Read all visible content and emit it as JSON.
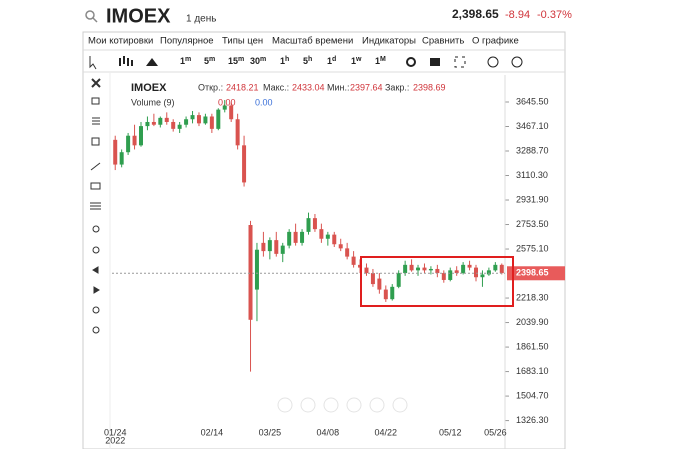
{
  "header": {
    "symbol": "IMOEX",
    "period": "1 день",
    "price": "2,398.65",
    "change": "-8.94",
    "change_pct": "-0.37%"
  },
  "menu": [
    "Мои котировки",
    "Популярное",
    "Типы цен",
    "Масштаб времени",
    "Индикаторы",
    "Сравнить",
    "О графике"
  ],
  "timeframes": [
    {
      "n": "1",
      "u": "m"
    },
    {
      "n": "5",
      "u": "m"
    },
    {
      "n": "15",
      "u": "m"
    },
    {
      "n": "30",
      "u": "m"
    },
    {
      "n": "1",
      "u": "h"
    },
    {
      "n": "5",
      "u": "h"
    },
    {
      "n": "1",
      "u": "d"
    },
    {
      "n": "1",
      "u": "w"
    },
    {
      "n": "1",
      "u": "M"
    }
  ],
  "legend": {
    "symbol": "IMOEX",
    "open_label": "Откр.:",
    "open": "2418.21",
    "high_label": "Макс.:",
    "high": "2433.04",
    "low_label": "Мин.:",
    "low": "2397.64",
    "close_label": "Закр.:",
    "close": "2398.69",
    "volume": "Volume (9)",
    "v1": "0.00",
    "v2": "0.00"
  },
  "chart_data": {
    "type": "candlestick",
    "up_color": "#2f9e4f",
    "down_color": "#d9534f",
    "categories": [
      "01/24",
      null,
      null,
      null,
      null,
      null,
      null,
      null,
      null,
      null,
      null,
      null,
      null,
      null,
      null,
      "02/14",
      null,
      null,
      null,
      null,
      null,
      null,
      null,
      null,
      "03/25",
      null,
      null,
      null,
      null,
      null,
      null,
      null,
      null,
      "04/08",
      null,
      null,
      null,
      null,
      null,
      null,
      null,
      null,
      "04/22",
      null,
      null,
      null,
      null,
      null,
      null,
      null,
      null,
      null,
      "05/12",
      null,
      null,
      null,
      null,
      null,
      null,
      "05/26",
      null
    ],
    "year": "2022",
    "open": [
      3370,
      3190,
      3280,
      3400,
      3330,
      3470,
      3500,
      3480,
      3530,
      3500,
      3450,
      3480,
      3520,
      3550,
      3490,
      3540,
      3450,
      3590,
      3620,
      3520,
      3330,
      2750,
      2280,
      2620,
      2560,
      2640,
      2540,
      2600,
      2700,
      2620,
      2700,
      2800,
      2720,
      2650,
      2680,
      2610,
      2580,
      2520,
      2460,
      2440,
      2400,
      2360,
      2280,
      2210,
      2300,
      2400,
      2460,
      2420,
      2440,
      2420,
      2430,
      2400,
      2350,
      2420,
      2400,
      2460,
      2440,
      2370,
      2390,
      2420,
      2460
    ],
    "high": [
      3400,
      3300,
      3420,
      3480,
      3500,
      3540,
      3560,
      3540,
      3570,
      3520,
      3500,
      3540,
      3580,
      3570,
      3560,
      3560,
      3600,
      3660,
      3640,
      3560,
      3400,
      2780,
      2620,
      2700,
      2660,
      2700,
      2620,
      2720,
      2760,
      2720,
      2840,
      2830,
      2760,
      2700,
      2700,
      2650,
      2620,
      2560,
      2500,
      2470,
      2430,
      2400,
      2310,
      2320,
      2420,
      2490,
      2500,
      2460,
      2470,
      2450,
      2460,
      2420,
      2440,
      2450,
      2480,
      2490,
      2460,
      2420,
      2440,
      2480,
      2470
    ],
    "low": [
      3150,
      3170,
      3260,
      3300,
      3320,
      3440,
      3470,
      3460,
      3480,
      3430,
      3420,
      3460,
      3490,
      3470,
      3480,
      3420,
      3440,
      3570,
      3500,
      3300,
      3030,
      1683,
      2050,
      2520,
      2500,
      2520,
      2480,
      2580,
      2600,
      2600,
      2680,
      2700,
      2620,
      2600,
      2590,
      2560,
      2500,
      2440,
      2400,
      2380,
      2300,
      2250,
      2190,
      2200,
      2290,
      2380,
      2410,
      2380,
      2400,
      2390,
      2370,
      2330,
      2340,
      2380,
      2390,
      2420,
      2340,
      2300,
      2380,
      2410,
      2390
    ],
    "close": [
      3190,
      3280,
      3400,
      3330,
      3470,
      3500,
      3480,
      3530,
      3500,
      3450,
      3480,
      3520,
      3550,
      3490,
      3540,
      3450,
      3590,
      3620,
      3520,
      3330,
      3060,
      2060,
      2570,
      2560,
      2640,
      2540,
      2600,
      2700,
      2620,
      2700,
      2800,
      2720,
      2650,
      2680,
      2610,
      2580,
      2520,
      2460,
      2440,
      2400,
      2320,
      2280,
      2210,
      2300,
      2400,
      2460,
      2420,
      2440,
      2420,
      2430,
      2400,
      2350,
      2420,
      2400,
      2460,
      2440,
      2370,
      2390,
      2420,
      2460,
      2400
    ],
    "last_price": 2398.65,
    "ylim": [
      1185,
      3842
    ],
    "yticks": [
      {
        "value": 3645.5,
        "label": "3645.50"
      },
      {
        "value": 3467.1,
        "label": "3467.10"
      },
      {
        "value": 3288.7,
        "label": "3288.70"
      },
      {
        "value": 3110.3,
        "label": "3110.30"
      },
      {
        "value": 2931.9,
        "label": "2931.90"
      },
      {
        "value": 2753.5,
        "label": "2753.50"
      },
      {
        "value": 2575.1,
        "label": "2575.10"
      },
      {
        "value": 2218.3,
        "label": "2218.30"
      },
      {
        "value": 2039.9,
        "label": "2039.90"
      },
      {
        "value": 1861.5,
        "label": "1861.50"
      },
      {
        "value": 1683.1,
        "label": "1683.10"
      },
      {
        "value": 1504.7,
        "label": "1504.70"
      },
      {
        "value": 1326.3,
        "label": "1326.30"
      }
    ]
  }
}
